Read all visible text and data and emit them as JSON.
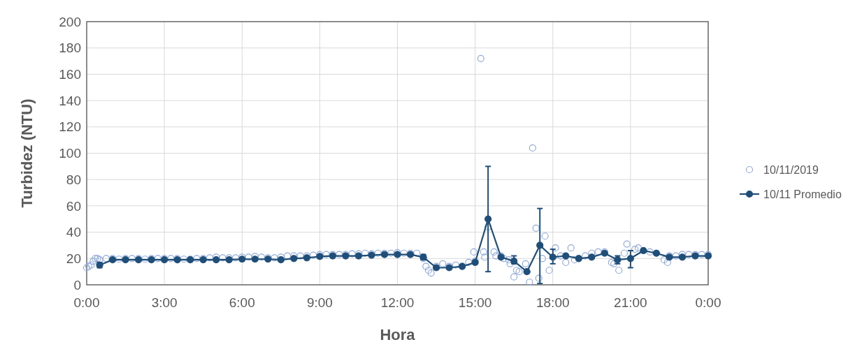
{
  "chart_data": {
    "type": "scatter",
    "xlabel": "Hora",
    "ylabel": "Turbidez (NTU)",
    "xlim": [
      0,
      24
    ],
    "ylim": [
      0,
      200
    ],
    "xticks": [
      {
        "value": 0,
        "label": "0:00"
      },
      {
        "value": 3,
        "label": "3:00"
      },
      {
        "value": 6,
        "label": "6:00"
      },
      {
        "value": 9,
        "label": "9:00"
      },
      {
        "value": 12,
        "label": "12:00"
      },
      {
        "value": 15,
        "label": "15:00"
      },
      {
        "value": 18,
        "label": "18:00"
      },
      {
        "value": 21,
        "label": "21:00"
      },
      {
        "value": 24,
        "label": "0:00"
      }
    ],
    "yticks": [
      0,
      20,
      40,
      60,
      80,
      100,
      120,
      140,
      160,
      180,
      200
    ],
    "grid": true,
    "legend": "right",
    "series": [
      {
        "name": "10/11/2019",
        "marker": "circle",
        "color": "#8faadc",
        "x": [
          0,
          0.08,
          0.17,
          0.25,
          0.33,
          0.42,
          0.5,
          0.75,
          1,
          1.25,
          1.5,
          1.75,
          2,
          2.25,
          2.5,
          2.75,
          3,
          3.25,
          3.5,
          3.75,
          4,
          4.25,
          4.5,
          4.75,
          5,
          5.25,
          5.5,
          5.75,
          6,
          6.25,
          6.5,
          6.75,
          7,
          7.25,
          7.5,
          7.75,
          8,
          8.25,
          8.5,
          8.75,
          9,
          9.25,
          9.5,
          9.75,
          10,
          10.25,
          10.5,
          10.75,
          11,
          11.25,
          11.5,
          11.75,
          12,
          12.25,
          12.5,
          12.75,
          13,
          13.1,
          13.2,
          13.3,
          13.5,
          13.75,
          14,
          14.25,
          14.5,
          14.75,
          14.95,
          15,
          15.22,
          15.33,
          15.37,
          15.5,
          15.73,
          15.8,
          16,
          16.1,
          16.3,
          16.35,
          16.5,
          16.6,
          16.7,
          16.95,
          17.1,
          17.22,
          17.35,
          17.46,
          17.6,
          17.7,
          17.86,
          18.1,
          18.3,
          18.5,
          18.7,
          18.84,
          19,
          19.25,
          19.5,
          19.75,
          20,
          20.27,
          20.36,
          20.55,
          20.76,
          20.86,
          21.17,
          21.3,
          21.5,
          21.75,
          22,
          22.3,
          22.43,
          22.5,
          22.75,
          23,
          23.25,
          23.5,
          23.75,
          24
        ],
        "values": [
          13,
          14,
          15,
          18,
          20,
          20,
          19,
          20,
          20,
          19.5,
          20,
          20,
          20,
          19.5,
          20,
          20,
          20,
          20,
          20,
          19.5,
          19.5,
          20,
          20,
          20.5,
          21,
          20.5,
          20.5,
          20.5,
          21,
          21,
          21.5,
          21,
          20.5,
          20.5,
          21,
          22,
          22,
          22,
          22,
          22.5,
          23,
          23,
          23,
          23,
          23,
          23.5,
          23.5,
          24,
          23.5,
          24,
          24,
          24,
          24.5,
          24,
          24,
          24,
          20,
          14,
          11,
          9,
          14,
          16,
          14,
          15,
          14,
          17,
          25,
          18,
          172,
          25,
          21,
          44,
          25,
          22,
          22,
          20,
          19,
          16,
          6,
          11,
          10,
          16,
          2,
          104,
          43,
          5,
          20,
          37,
          11,
          28,
          22,
          17,
          28,
          19,
          20,
          22,
          24,
          25,
          25,
          17,
          16,
          11,
          24,
          31,
          27,
          28,
          26,
          25,
          24,
          19,
          17,
          22,
          22,
          23,
          23,
          23,
          23,
          23
        ]
      },
      {
        "name": "10/11 Promedio",
        "type": "line",
        "marker": "circle",
        "color": "#1f4e79",
        "x": [
          0.5,
          1,
          1.5,
          2,
          2.5,
          3,
          3.5,
          4,
          4.5,
          5,
          5.5,
          6,
          6.5,
          7,
          7.5,
          8,
          8.5,
          9,
          9.5,
          10,
          10.5,
          11,
          11.5,
          12,
          12.5,
          13,
          13.5,
          14,
          14.5,
          15,
          15.5,
          16,
          16.5,
          17,
          17.5,
          18,
          18.5,
          19,
          19.5,
          20,
          20.5,
          21,
          21.5,
          22,
          22.5,
          23,
          23.5,
          24
        ],
        "values": [
          15,
          19,
          19,
          19,
          19,
          19,
          19,
          19,
          19,
          19,
          19,
          19.5,
          19.5,
          19.5,
          19,
          20,
          20.5,
          21.5,
          22,
          22,
          22,
          22.5,
          23,
          23,
          23,
          21,
          13,
          13,
          14,
          17,
          50,
          21,
          18,
          10,
          30,
          21,
          22,
          20,
          21,
          24,
          19,
          20,
          26,
          24,
          21,
          21,
          22,
          22
        ],
        "errors": [
          2,
          null,
          null,
          null,
          null,
          null,
          null,
          null,
          null,
          null,
          null,
          null,
          null,
          null,
          null,
          null,
          null,
          null,
          null,
          null,
          null,
          null,
          null,
          null,
          null,
          2,
          null,
          null,
          null,
          null,
          [
            10,
            90
          ],
          null,
          [
            16,
            22
          ],
          null,
          [
            1,
            58
          ],
          [
            16,
            27
          ],
          null,
          null,
          null,
          null,
          [
            16,
            22
          ],
          [
            13,
            26
          ],
          null,
          null,
          null,
          null,
          null,
          null
        ]
      }
    ]
  }
}
